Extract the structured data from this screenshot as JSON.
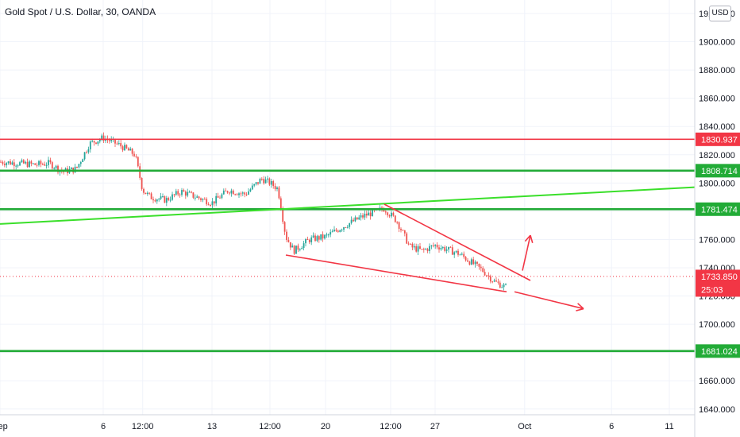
{
  "title": "Gold Spot / U.S. Dollar, 30, OANDA",
  "currency_button": "USD",
  "price_badges": [
    {
      "label": "1830.937",
      "color": "#f23645"
    },
    {
      "label": "1808.714",
      "color": "#22ab37"
    },
    {
      "label": "1781.474",
      "color": "#22ab37"
    },
    {
      "label": "1733.850",
      "countdown": "25:03",
      "color": "#f23645"
    },
    {
      "label": "1681.024",
      "color": "#22ab37"
    }
  ],
  "colors": {
    "up": "#26a69a",
    "down": "#ef5350",
    "support": "#22ab37",
    "resistance": "#f23645",
    "trend": "#3adf2a",
    "grid": "#f0f3fa",
    "axis_text": "#131722"
  },
  "chart_data": {
    "type": "candlestick",
    "title": "Gold Spot / U.S. Dollar, 30, OANDA",
    "interval": "30",
    "source": "OANDA",
    "ylim": [
      1636,
      1928
    ],
    "y_ticks": [
      "1640.000",
      "1660.000",
      "1680.000",
      "1700.000",
      "1720.000",
      "1740.000",
      "1760.000",
      "1780.000",
      "1800.000",
      "1820.000",
      "1840.000",
      "1860.000",
      "1880.000",
      "1900.000",
      "1920.000"
    ],
    "x_ticks": [
      "Sep",
      "6",
      "12:00",
      "13",
      "12:00",
      "20",
      "12:00",
      "27",
      "Oct",
      "6",
      "11"
    ],
    "current_price": 1733.85,
    "horizontal_levels": [
      {
        "price": 1830.937,
        "color": "red"
      },
      {
        "price": 1808.714,
        "color": "green"
      },
      {
        "price": 1781.474,
        "color": "green"
      },
      {
        "price": 1681.024,
        "color": "green"
      }
    ],
    "price_path": [
      {
        "date": "Aug 31",
        "price": 1815
      },
      {
        "date": "Sep 1",
        "price": 1813
      },
      {
        "date": "Sep 2",
        "price": 1814
      },
      {
        "date": "Sep 3",
        "price": 1808
      },
      {
        "date": "Sep 4",
        "price": 1810
      },
      {
        "date": "Sep 5",
        "price": 1828
      },
      {
        "date": "Sep 6",
        "price": 1832
      },
      {
        "date": "Sep 7",
        "price": 1827
      },
      {
        "date": "Sep 8",
        "price": 1820
      },
      {
        "date": "Sep 8 12:00",
        "price": 1795
      },
      {
        "date": "Sep 9",
        "price": 1790
      },
      {
        "date": "Sep 10",
        "price": 1788
      },
      {
        "date": "Sep 11",
        "price": 1794
      },
      {
        "date": "Sep 12",
        "price": 1790
      },
      {
        "date": "Sep 13",
        "price": 1786
      },
      {
        "date": "Sep 14",
        "price": 1795
      },
      {
        "date": "Sep 15",
        "price": 1792
      },
      {
        "date": "Sep 16",
        "price": 1803
      },
      {
        "date": "Sep 16 12:00",
        "price": 1800
      },
      {
        "date": "Sep 17",
        "price": 1796
      },
      {
        "date": "Sep 17 12:00",
        "price": 1762
      },
      {
        "date": "Sep 18",
        "price": 1752
      },
      {
        "date": "Sep 19",
        "price": 1760
      },
      {
        "date": "Sep 20",
        "price": 1762
      },
      {
        "date": "Sep 21",
        "price": 1770
      },
      {
        "date": "Sep 22",
        "price": 1777
      },
      {
        "date": "Sep 23",
        "price": 1782
      },
      {
        "date": "Sep 24",
        "price": 1773
      },
      {
        "date": "Sep 25",
        "price": 1755
      },
      {
        "date": "Sep 26",
        "price": 1752
      },
      {
        "date": "Sep 27",
        "price": 1756
      },
      {
        "date": "Sep 28",
        "price": 1750
      },
      {
        "date": "Sep 29",
        "price": 1738
      },
      {
        "date": "Sep 29 12:00",
        "price": 1730
      },
      {
        "date": "Sep 30",
        "price": 1726
      },
      {
        "date": "Sep 30 12:00",
        "price": 1734
      }
    ]
  }
}
